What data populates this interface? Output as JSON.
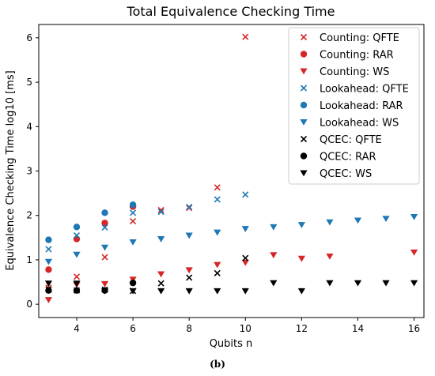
{
  "caption": "(b)",
  "chart_data": {
    "type": "scatter",
    "title": "Total Equivalence Checking Time",
    "xlabel": "Qubits n",
    "ylabel": "Equivalence Checking Time log10 [ms]",
    "xlim": [
      2.65,
      16.35
    ],
    "ylim": [
      -0.3,
      6.3
    ],
    "xticks": [
      4,
      6,
      8,
      10,
      12,
      14,
      16
    ],
    "yticks": [
      0,
      1,
      2,
      3,
      4,
      5,
      6
    ],
    "grid": false,
    "legend_position": "upper right",
    "colors": {
      "counting": "#d62728",
      "lookahead": "#1f77b4",
      "qcec": "#000000"
    },
    "series": [
      {
        "name": "Counting: QFTE",
        "color": "#d62728",
        "marker": "x",
        "x": [
          3,
          4,
          5,
          6,
          7,
          8,
          9,
          10
        ],
        "y": [
          0.37,
          0.62,
          1.06,
          1.87,
          2.12,
          2.17,
          2.63,
          6.02
        ]
      },
      {
        "name": "Counting: RAR",
        "color": "#d62728",
        "marker": "circle",
        "x": [
          3,
          4,
          5,
          6
        ],
        "y": [
          0.78,
          1.47,
          1.83,
          2.2
        ]
      },
      {
        "name": "Counting: WS",
        "color": "#d62728",
        "marker": "triangle-down",
        "x": [
          3,
          4,
          5,
          6,
          7,
          8,
          9,
          10,
          11,
          12,
          13,
          16
        ],
        "y": [
          0.1,
          0.44,
          0.46,
          0.56,
          0.68,
          0.77,
          0.89,
          0.94,
          1.11,
          1.03,
          1.08,
          1.17
        ]
      },
      {
        "name": "Lookahead: QFTE",
        "color": "#1f77b4",
        "marker": "x",
        "x": [
          3,
          4,
          5,
          6,
          7,
          8,
          9,
          10
        ],
        "y": [
          1.24,
          1.55,
          1.73,
          2.06,
          2.08,
          2.19,
          2.36,
          2.47
        ]
      },
      {
        "name": "Lookahead: RAR",
        "color": "#1f77b4",
        "marker": "circle",
        "x": [
          3,
          4,
          5,
          6
        ],
        "y": [
          1.45,
          1.74,
          2.06,
          2.24
        ]
      },
      {
        "name": "Lookahead: WS",
        "color": "#1f77b4",
        "marker": "triangle-down",
        "x": [
          3,
          4,
          5,
          6,
          7,
          8,
          9,
          10,
          11,
          12,
          13,
          14,
          15,
          16
        ],
        "y": [
          0.96,
          1.12,
          1.28,
          1.4,
          1.47,
          1.55,
          1.62,
          1.7,
          1.74,
          1.79,
          1.85,
          1.89,
          1.93,
          1.97
        ]
      },
      {
        "name": "QCEC: QFTE",
        "color": "#000000",
        "marker": "x",
        "x": [
          3,
          4,
          5,
          6,
          7,
          8,
          9,
          10
        ],
        "y": [
          0.33,
          0.31,
          0.33,
          0.3,
          0.47,
          0.6,
          0.7,
          1.04
        ]
      },
      {
        "name": "QCEC: RAR",
        "color": "#000000",
        "marker": "circle",
        "x": [
          3,
          4,
          5,
          6
        ],
        "y": [
          0.31,
          0.31,
          0.31,
          0.48
        ]
      },
      {
        "name": "QCEC: WS",
        "color": "#000000",
        "marker": "triangle-down",
        "x": [
          3,
          4,
          5,
          6,
          7,
          8,
          9,
          10,
          11,
          12,
          13,
          14,
          15,
          16
        ],
        "y": [
          0.47,
          0.47,
          0.3,
          0.3,
          0.3,
          0.3,
          0.3,
          0.3,
          0.48,
          0.3,
          0.48,
          0.48,
          0.48,
          0.48
        ]
      }
    ]
  }
}
